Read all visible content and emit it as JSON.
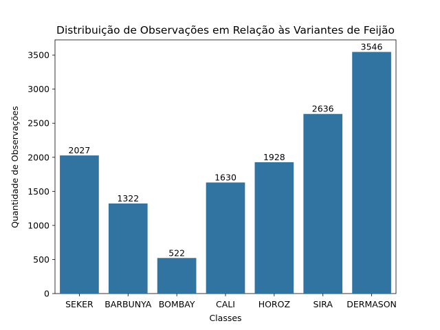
{
  "chart_data": {
    "type": "bar",
    "title": "Distribuição de Observações em Relação às Variantes de Feijão",
    "xlabel": "Classes",
    "ylabel": "Quantidade de Observações",
    "categories": [
      "SEKER",
      "BARBUNYA",
      "BOMBAY",
      "CALI",
      "HOROZ",
      "SIRA",
      "DERMASON"
    ],
    "values": [
      2027,
      1322,
      522,
      1630,
      1928,
      2636,
      3546
    ],
    "data_labels": [
      "2027",
      "1322",
      "522",
      "1630",
      "1928",
      "2636",
      "3546"
    ],
    "yticks": [
      0,
      500,
      1000,
      1500,
      2000,
      2500,
      3000,
      3500
    ],
    "ytick_labels": [
      "0",
      "500",
      "1000",
      "1500",
      "2000",
      "2500",
      "3000",
      "3500"
    ],
    "ylim": [
      0,
      3723
    ],
    "grid": false,
    "bar_color": "#3274a1"
  }
}
